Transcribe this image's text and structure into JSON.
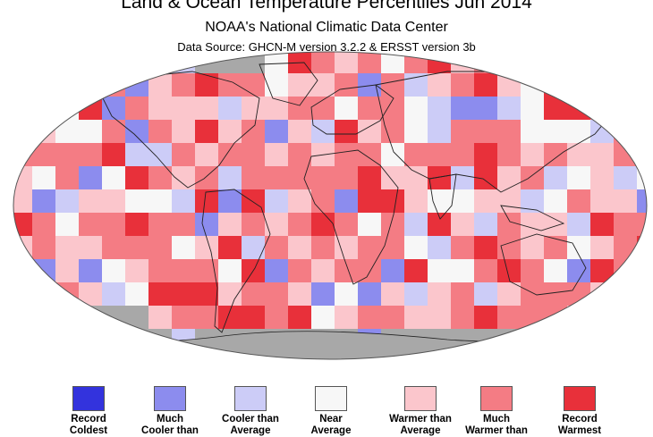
{
  "header": {
    "title": "Land & Ocean Temperature Percentiles Jun 2014",
    "subtitle": "NOAA's National Climatic Data Center",
    "source": "Data Source: GHCN-M version 3.2.2 & ERSST version 3b"
  },
  "colors": {
    "record_coldest": "#3333dd",
    "much_cooler": "#8c8cee",
    "cooler": "#ccccf7",
    "near": "#f7f7f7",
    "warmer": "#fbc6cc",
    "much_warmer": "#f47c84",
    "record_warmest": "#e8303a",
    "no_data": "#a8a8a8",
    "land_outline": "#222222"
  },
  "legend": [
    {
      "key": "record_coldest",
      "label": "Record\nColdest"
    },
    {
      "key": "much_cooler",
      "label": "Much\nCooler than"
    },
    {
      "key": "cooler",
      "label": "Cooler than\nAverage"
    },
    {
      "key": "near",
      "label": "Near\nAverage"
    },
    {
      "key": "warmer",
      "label": "Warmer than\nAverage"
    },
    {
      "key": "much_warmer",
      "label": "Much\nWarmer than"
    },
    {
      "key": "record_warmest",
      "label": "Record\nWarmest"
    }
  ]
}
